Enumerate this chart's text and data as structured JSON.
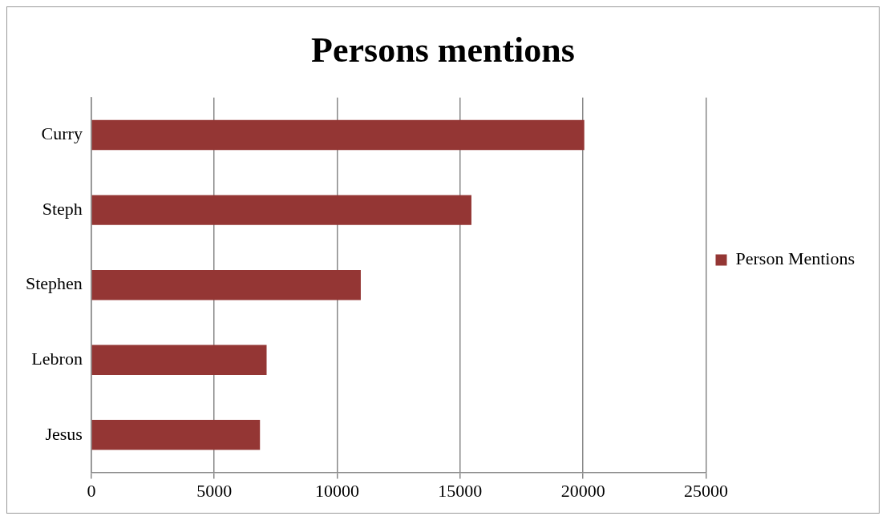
{
  "chart_data": {
    "type": "bar",
    "orientation": "horizontal",
    "title": "Persons mentions",
    "categories": [
      "Curry",
      "Steph",
      "Stephen",
      "Lebron",
      "Jesus"
    ],
    "series": [
      {
        "name": "Person Mentions",
        "color": "#943634",
        "values": [
          20050,
          15460,
          10960,
          7130,
          6860
        ]
      }
    ],
    "xlim": [
      0,
      25000
    ],
    "xticks": [
      0,
      5000,
      10000,
      15000,
      20000,
      25000
    ],
    "grid": "x",
    "legend": "right"
  }
}
